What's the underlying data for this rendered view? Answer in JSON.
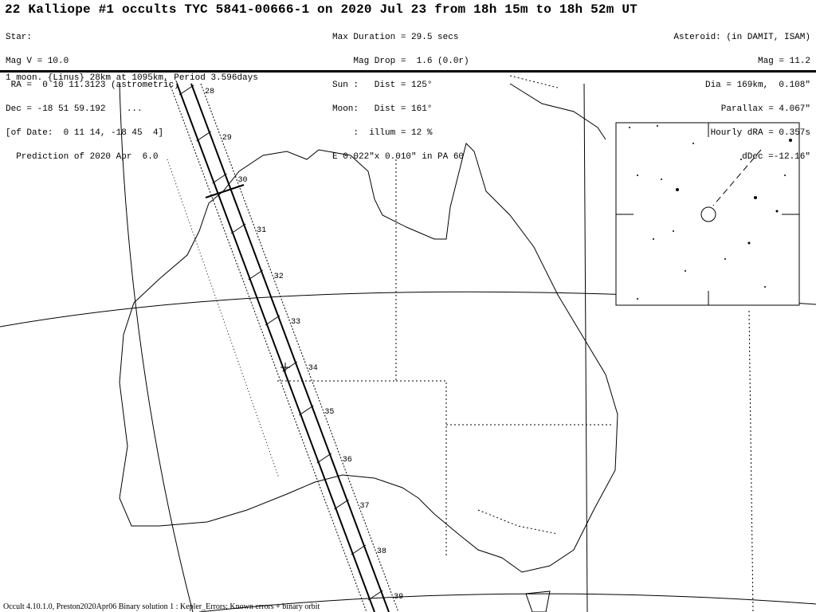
{
  "title": "22 Kalliope #1 occults TYC 5841-00666-1 on 2020 Jul 23 from 18h 15m to 18h 52m UT",
  "star": [
    "Star:",
    "Mag V = 10.0",
    " RA =  0 10 11.3123 (astrometric)",
    "Dec = -18 51 59.192    ...",
    "[of Date:  0 11 14, -18 45  4]",
    "  Prediction of 2020 Apr  6.0"
  ],
  "event": [
    "Max Duration = 29.5 secs",
    "    Mag Drop =  1.6 (0.0r)",
    "Sun :   Dist = 125°",
    "Moon:   Dist = 161°",
    "    :  illum = 12 %",
    "E 0.022\"x 0.010\" in PA 60"
  ],
  "asteroid": [
    "Asteroid: (in DAMIT, ISAM)",
    "Mag = 11.2",
    "Dia = 169km,  0.108\"",
    "Parallax = 4.067\"",
    "Hourly dRA = 0.357s",
    "dDec =-12.16\""
  ],
  "moon_line": "1 moon. {Linus} 28km at 1095km, Period 3.596days",
  "minute_ticks": [
    "28",
    "29",
    "30",
    "31",
    "32",
    "33",
    "34",
    "35",
    "36",
    "37",
    "38",
    "39"
  ],
  "footer": "Occult 4.10.1.0, Preston2020Apr06 Binary solution 1 : Kepler_Errors: Known errors + binary orbit"
}
